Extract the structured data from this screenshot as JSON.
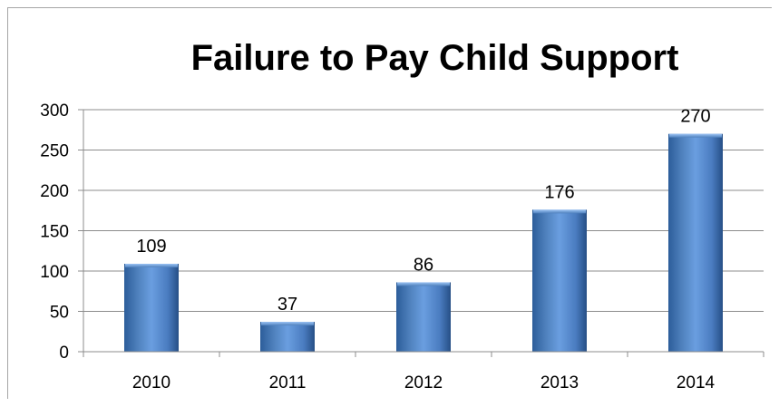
{
  "chart_data": {
    "type": "bar",
    "title": "Failure to Pay Child Support",
    "xlabel": "",
    "ylabel": "",
    "categories": [
      "2010",
      "2011",
      "2012",
      "2013",
      "2014"
    ],
    "values": [
      109,
      37,
      86,
      176,
      270
    ],
    "data_labels": [
      "109",
      "37",
      "86",
      "176",
      "270"
    ],
    "ylim": [
      0,
      300
    ],
    "yticks": [
      0,
      50,
      100,
      150,
      200,
      250,
      300
    ],
    "grid": true,
    "legend": "none",
    "colors": {
      "bar": "#4f81bd",
      "bar_light": "#7fb0f0",
      "bar_dark": "#2c5d9a",
      "grid": "#8c8c8c"
    }
  }
}
